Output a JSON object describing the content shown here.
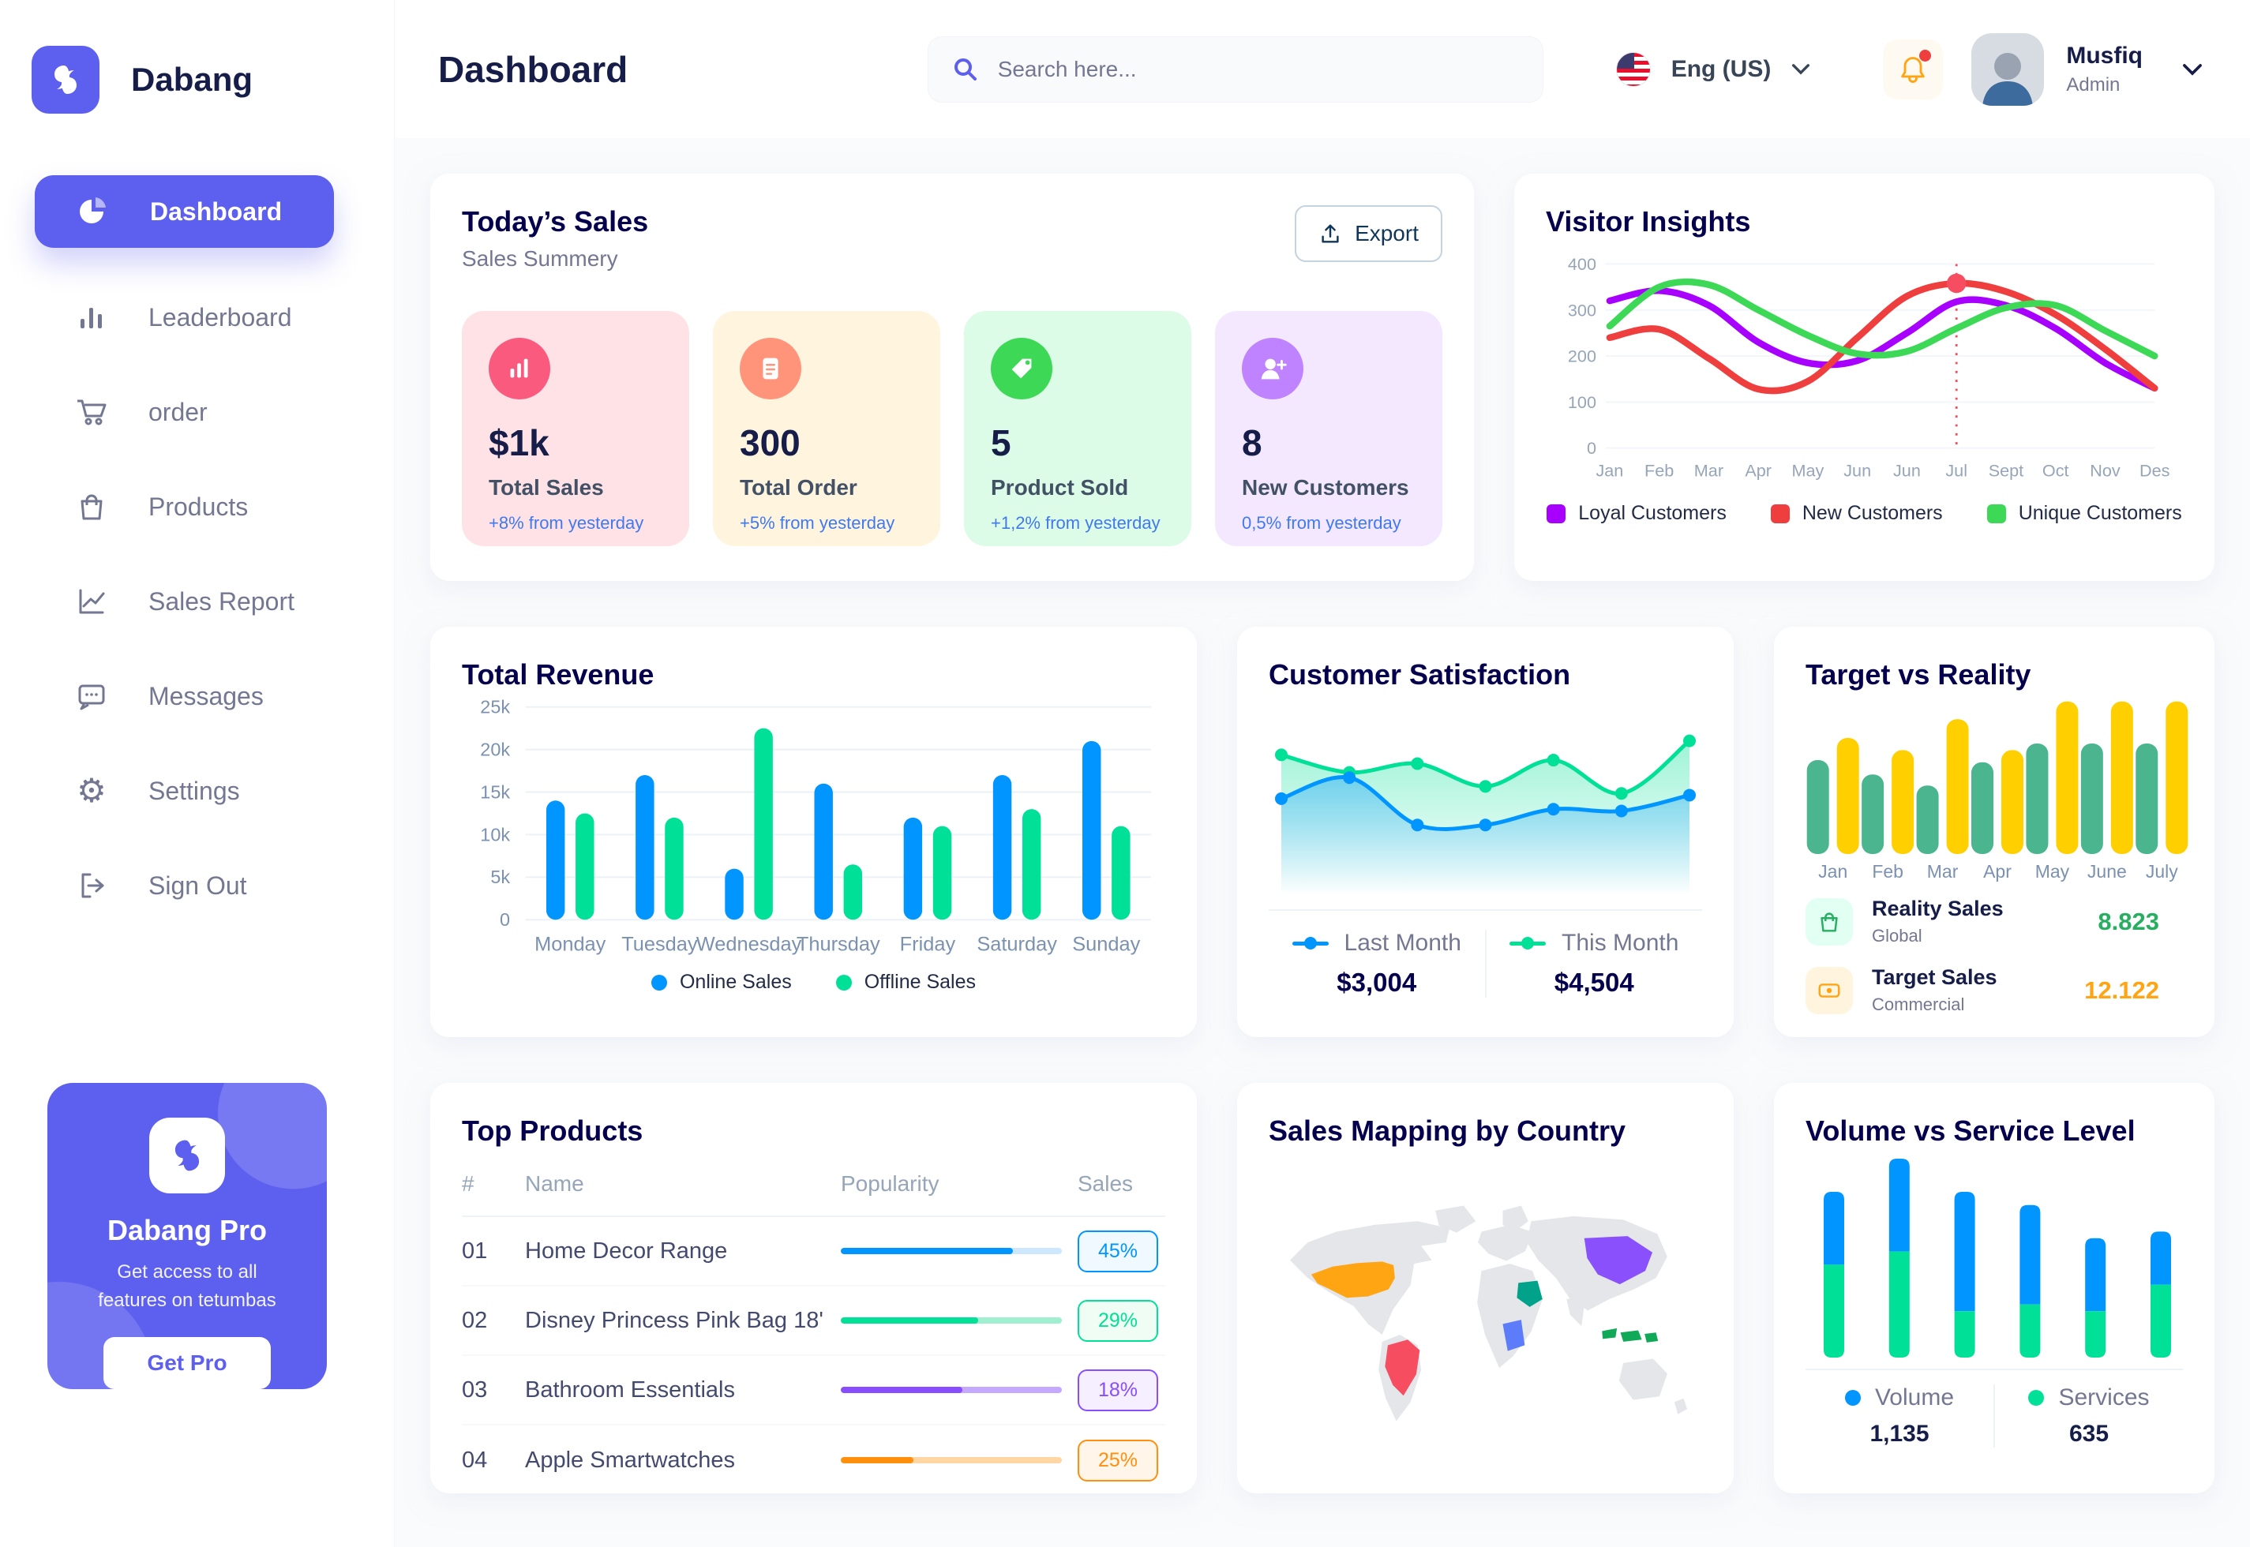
{
  "app": {
    "brand": "Dabang"
  },
  "colors": {
    "primary": "#5D5FEF",
    "title_navy": "#05004E",
    "text_gray": "#737791",
    "axis_gray": "#96A5B8",
    "delta_blue": "#4079ED"
  },
  "header": {
    "page_title": "Dashboard",
    "search_placeholder": "Search here...",
    "language": "Eng (US)",
    "user": {
      "name": "Musfiq",
      "role": "Admin"
    }
  },
  "sidebar": {
    "items": [
      {
        "label": "Dashboard",
        "active": true
      },
      {
        "label": "Leaderboard"
      },
      {
        "label": "order"
      },
      {
        "label": "Products"
      },
      {
        "label": "Sales Report"
      },
      {
        "label": "Messages"
      },
      {
        "label": "Settings"
      },
      {
        "label": "Sign Out"
      }
    ],
    "pro": {
      "title": "Dabang Pro",
      "desc": "Get access to all features on tetumbas",
      "cta": "Get Pro"
    }
  },
  "today_sales": {
    "title": "Today’s Sales",
    "subtitle": "Sales Summery",
    "export_label": "Export",
    "cards": [
      {
        "value": "$1k",
        "label": "Total Sales",
        "delta": "+8% from yesterday",
        "bg": "#FFE2E5",
        "icon_bg": "#FA5A7D",
        "icon": "bar-chart-icon"
      },
      {
        "value": "300",
        "label": "Total Order",
        "delta": "+5% from yesterday",
        "bg": "#FFF4DE",
        "icon_bg": "#FF947A",
        "icon": "order-file-icon"
      },
      {
        "value": "5",
        "label": "Product Sold",
        "delta": "+1,2% from yesterday",
        "bg": "#DCFCE7",
        "icon_bg": "#3CD856",
        "icon": "tag-icon"
      },
      {
        "value": "8",
        "label": "New Customers",
        "delta": "0,5% from yesterday",
        "bg": "#F3E8FF",
        "icon_bg": "#BF83FF",
        "icon": "user-plus-icon"
      }
    ]
  },
  "chart_data": [
    {
      "id": "visitor_insights",
      "type": "line",
      "title": "Visitor Insights",
      "x": [
        "Jan",
        "Feb",
        "Mar",
        "Apr",
        "May",
        "Jun",
        "Jun",
        "Jul",
        "Sept",
        "Oct",
        "Nov",
        "Des"
      ],
      "ylim": [
        0,
        400
      ],
      "yticks": [
        0,
        100,
        200,
        300,
        400
      ],
      "grid": true,
      "legend_position": "bottom",
      "series": [
        {
          "name": "Loyal Customers",
          "color": "#A700FF",
          "values": [
            320,
            342,
            310,
            230,
            185,
            190,
            250,
            318,
            310,
            260,
            185,
            130
          ]
        },
        {
          "name": "New Customers",
          "color": "#EF3E3E",
          "values": [
            240,
            258,
            195,
            128,
            145,
            240,
            330,
            358,
            340,
            290,
            215,
            130
          ]
        },
        {
          "name": "Unique Customers",
          "color": "#3CD856",
          "values": [
            265,
            350,
            355,
            300,
            245,
            205,
            210,
            260,
            305,
            310,
            255,
            200
          ]
        }
      ],
      "highlight": {
        "series": 1,
        "index": 7,
        "value": 358,
        "line_color": "#F64E60"
      }
    },
    {
      "id": "total_revenue",
      "type": "bar",
      "title": "Total Revenue",
      "categories": [
        "Monday",
        "Tuesday",
        "Wednesday",
        "Thursday",
        "Friday",
        "Saturday",
        "Sunday"
      ],
      "ylim": [
        0,
        25000
      ],
      "yticks": [
        0,
        5000,
        10000,
        15000,
        20000,
        25000
      ],
      "ytick_labels": [
        "0",
        "5k",
        "10k",
        "15k",
        "20k",
        "25k"
      ],
      "grid": true,
      "legend_position": "bottom",
      "series": [
        {
          "name": "Online Sales",
          "color": "#0095FF",
          "values": [
            14000,
            17000,
            6000,
            16000,
            12000,
            17000,
            21000
          ]
        },
        {
          "name": "Offline Sales",
          "color": "#00E096",
          "values": [
            12500,
            12000,
            22500,
            6500,
            11000,
            13000,
            11000
          ]
        }
      ]
    },
    {
      "id": "customer_satisfaction",
      "type": "area",
      "title": "Customer Satisfaction",
      "ylim": [
        0,
        100
      ],
      "grid": false,
      "legend_position": "bottom",
      "series": [
        {
          "name": "Last Month",
          "total": "$3,004",
          "color": "#0095FF",
          "values": [
            55,
            67,
            40,
            40,
            49,
            48,
            57
          ]
        },
        {
          "name": "This Month",
          "total": "$4,504",
          "color": "#00E096",
          "values": [
            80,
            70,
            75,
            62,
            77,
            58,
            88
          ]
        }
      ]
    },
    {
      "id": "target_vs_reality",
      "type": "bar",
      "title": "Target vs Reality",
      "categories": [
        "Jan",
        "Feb",
        "Mar",
        "Apr",
        "May",
        "June",
        "July"
      ],
      "ylim": [
        0,
        14
      ],
      "grid": false,
      "legend_position": "bottom",
      "series": [
        {
          "name": "Reality Sales",
          "sub": "Global",
          "value": "8.823",
          "color": "#4AB58E",
          "value_color": "#27AE60",
          "icon_bg": "#E2FFF3",
          "values": [
            8.5,
            7.2,
            6.2,
            8.3,
            10,
            10,
            10
          ]
        },
        {
          "name": "Target Sales",
          "sub": "Commercial",
          "value": "12.122",
          "color": "#FFCF00",
          "value_color": "#FFA412",
          "icon_bg": "#FFF4DE",
          "values": [
            10.5,
            9.4,
            12.2,
            9.4,
            13.8,
            13.8,
            13.8
          ]
        }
      ]
    },
    {
      "id": "volume_vs_service",
      "type": "stacked-bar",
      "title": "Volume vs Service Level",
      "categories": [
        "1",
        "2",
        "3",
        "4",
        "5",
        "6"
      ],
      "grid": false,
      "legend_position": "bottom",
      "series": [
        {
          "name": "Volume",
          "total": "1,135",
          "color": "#0095FF",
          "values": [
            11,
            14,
            18,
            15,
            11,
            8
          ]
        },
        {
          "name": "Services",
          "total": "635",
          "color": "#00E096",
          "values": [
            14,
            16,
            7,
            8,
            7,
            11
          ]
        }
      ]
    }
  ],
  "top_products": {
    "title": "Top Products",
    "headers": [
      "#",
      "Name",
      "Popularity",
      "Sales"
    ],
    "rows": [
      {
        "num": "01",
        "name": "Home Decor Range",
        "fill_pct": 78,
        "sales": "45%",
        "color": "#0095FF",
        "track": "#CDE7FF",
        "badge_bg": "#F0F9FF"
      },
      {
        "num": "02",
        "name": "Disney Princess Pink Bag 18'",
        "fill_pct": 62,
        "sales": "29%",
        "color": "#00E096",
        "track": "#A0EFD0",
        "badge_bg": "#F0FDF4"
      },
      {
        "num": "03",
        "name": "Bathroom Essentials",
        "fill_pct": 55,
        "sales": "18%",
        "color": "#884DFF",
        "track": "#C5A8FF",
        "badge_bg": "#F6EFFF"
      },
      {
        "num": "04",
        "name": "Apple Smartwatches",
        "fill_pct": 33,
        "sales": "25%",
        "color": "#FF8F0D",
        "track": "#FFD6A4",
        "badge_bg": "#FFF6E9"
      }
    ]
  },
  "sales_mapping": {
    "title": "Sales Mapping by Country",
    "land_color": "#E4E6EA",
    "countries": [
      {
        "id": "usa",
        "name": "United States",
        "color": "#FFA412"
      },
      {
        "id": "brazil",
        "name": "Brazil",
        "color": "#F64E60"
      },
      {
        "id": "saudi",
        "name": "Saudi Arabia",
        "color": "#00A389"
      },
      {
        "id": "drc",
        "name": "Democratic Republic of Congo",
        "color": "#5C7CFA"
      },
      {
        "id": "china",
        "name": "China",
        "color": "#8950FC"
      },
      {
        "id": "indonesia",
        "name": "Indonesia",
        "color": "#0FA958"
      }
    ]
  }
}
